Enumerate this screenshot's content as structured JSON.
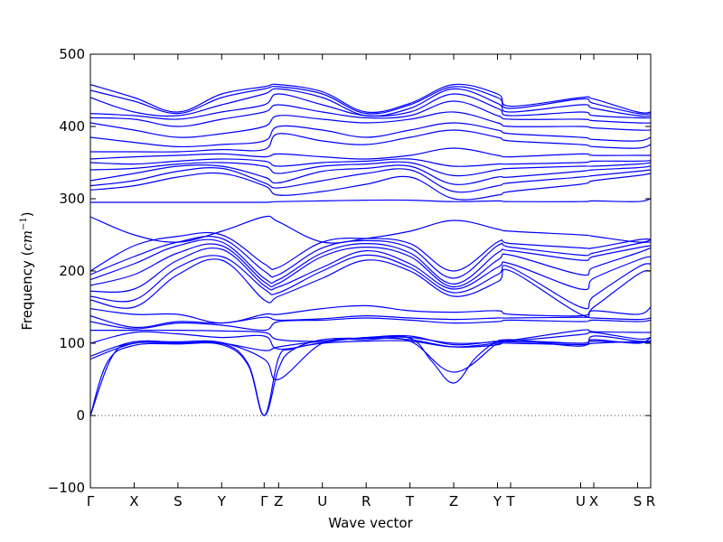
{
  "chart_data": {
    "type": "line",
    "title": "",
    "xlabel": "Wave vector",
    "ylabel_text": "Frequency (",
    "ylabel_unit": "cm",
    "ylabel_exponent": "−1",
    "ylabel_close": ")",
    "ylim": [
      -100,
      500
    ],
    "yticks": [
      -100,
      0,
      100,
      200,
      300,
      400,
      500
    ],
    "xlim": [
      0,
      12.8
    ],
    "xticks": [
      {
        "pos": 0.0,
        "label": "Γ"
      },
      {
        "pos": 1.0,
        "label": "X"
      },
      {
        "pos": 2.0,
        "label": "S"
      },
      {
        "pos": 3.0,
        "label": "Y"
      },
      {
        "pos": 3.97,
        "label": "Γ"
      },
      {
        "pos": 4.3,
        "label": "Z"
      },
      {
        "pos": 5.3,
        "label": "U"
      },
      {
        "pos": 6.3,
        "label": "R"
      },
      {
        "pos": 7.3,
        "label": "T"
      },
      {
        "pos": 8.3,
        "label": "Z"
      },
      {
        "pos": 9.3,
        "label": "Y"
      },
      {
        "pos": 9.6,
        "label": "T"
      },
      {
        "pos": 11.2,
        "label": "U"
      },
      {
        "pos": 11.5,
        "label": "X"
      },
      {
        "pos": 12.5,
        "label": "S"
      },
      {
        "pos": 12.8,
        "label": "R"
      }
    ],
    "zero_line": true,
    "grid": false,
    "line_color": "#0000ff",
    "series": [
      {
        "x": [
          0,
          0.4,
          1,
          2,
          3,
          3.6,
          3.97,
          4.3,
          4.6,
          5.3,
          6.3,
          7.3,
          8.3,
          9.3,
          9.6,
          11.2,
          11.5,
          12.5,
          12.8
        ],
        "y": [
          0,
          75,
          97,
          99,
          98,
          70,
          0,
          80,
          92,
          100,
          103,
          103,
          95,
          100,
          100,
          98,
          100,
          102,
          100
        ]
      },
      {
        "x": [
          0,
          0.5,
          1,
          2,
          3,
          3.6,
          3.97,
          4.3,
          4.6,
          5.3,
          6.3,
          7.3,
          7.8,
          8.3,
          8.8,
          9.3,
          9.6,
          11.2,
          11.5,
          12.5,
          12.8
        ],
        "y": [
          0,
          82,
          100,
          100,
          100,
          72,
          0,
          65,
          90,
          105,
          107,
          107,
          75,
          45,
          80,
          103,
          102,
          100,
          103,
          101,
          102
        ]
      },
      {
        "x": [
          0,
          1,
          2,
          3,
          3.97,
          4.3,
          5.3,
          6.3,
          7.3,
          8.3,
          9.3,
          9.6,
          11.2,
          11.5,
          12.5,
          12.8
        ],
        "y": [
          78,
          100,
          102,
          101,
          78,
          50,
          100,
          105,
          103,
          60,
          100,
          104,
          100,
          105,
          100,
          108
        ]
      },
      {
        "x": [
          0,
          1,
          2,
          3,
          3.97,
          4.3,
          5.3,
          6.3,
          7.3,
          8.3,
          9.3,
          9.6,
          11.2,
          11.5,
          12.5,
          12.8
        ],
        "y": [
          82,
          102,
          101,
          100,
          90,
          95,
          103,
          107,
          105,
          95,
          98,
          105,
          96,
          110,
          103,
          103
        ]
      },
      {
        "x": [
          0,
          1,
          2,
          3,
          3.97,
          4.3,
          5.3,
          6.3,
          7.3,
          8.3,
          9.3,
          9.6,
          11.2,
          11.5,
          12.5,
          12.8
        ],
        "y": [
          100,
          115,
          113,
          108,
          110,
          92,
          101,
          108,
          108,
          100,
          102,
          103,
          112,
          115,
          106,
          108
        ]
      },
      {
        "x": [
          0,
          1,
          2,
          3,
          3.97,
          4.3,
          5.3,
          6.3,
          7.3,
          8.3,
          9.3,
          9.6,
          11.2,
          11.5,
          12.5,
          12.8
        ],
        "y": [
          118,
          118,
          118,
          117,
          115,
          105,
          103,
          108,
          110,
          98,
          103,
          104,
          118,
          116,
          115,
          115
        ]
      },
      {
        "x": [
          0,
          1,
          2,
          3,
          3.97,
          4.3,
          5.3,
          6.3,
          7.3,
          8.3,
          9.3,
          9.6,
          11.2,
          11.5,
          12.5,
          12.8
        ],
        "y": [
          130,
          120,
          128,
          125,
          118,
          130,
          132,
          135,
          132,
          128,
          130,
          132,
          130,
          132,
          130,
          132
        ]
      },
      {
        "x": [
          0,
          1,
          2,
          3,
          3.97,
          4.3,
          5.3,
          6.3,
          7.3,
          8.3,
          9.3,
          9.6,
          11.2,
          11.5,
          12.5,
          12.8
        ],
        "y": [
          138,
          122,
          130,
          128,
          136,
          132,
          134,
          138,
          135,
          133,
          135,
          135,
          136,
          135,
          133,
          135
        ]
      },
      {
        "x": [
          0,
          1,
          2,
          3,
          3.97,
          4.3,
          5.3,
          6.3,
          7.3,
          8.3,
          9.3,
          9.6,
          11.2,
          11.5,
          12.5,
          12.8
        ],
        "y": [
          148,
          140,
          140,
          128,
          140,
          140,
          148,
          152,
          145,
          143,
          145,
          140,
          138,
          145,
          140,
          150
        ]
      },
      {
        "x": [
          0,
          1,
          2,
          3,
          3.97,
          4.3,
          5.3,
          6.3,
          7.3,
          8.3,
          9.3,
          9.6,
          11.2,
          11.5,
          12.5,
          12.8
        ],
        "y": [
          160,
          150,
          195,
          215,
          160,
          165,
          190,
          215,
          200,
          165,
          185,
          200,
          140,
          150,
          195,
          200
        ]
      },
      {
        "x": [
          0,
          1,
          2,
          3,
          3.97,
          4.3,
          5.3,
          6.3,
          7.3,
          8.3,
          9.3,
          9.6,
          11.2,
          11.5,
          12.5,
          12.8
        ],
        "y": [
          165,
          160,
          205,
          220,
          175,
          170,
          200,
          222,
          205,
          170,
          195,
          205,
          150,
          165,
          205,
          210
        ]
      },
      {
        "x": [
          0,
          1,
          2,
          3,
          3.97,
          4.3,
          5.3,
          6.3,
          7.3,
          8.3,
          9.3,
          9.6,
          11.2,
          11.5,
          12.5,
          12.8
        ],
        "y": [
          172,
          175,
          215,
          230,
          180,
          178,
          205,
          228,
          210,
          175,
          205,
          210,
          175,
          190,
          215,
          220
        ]
      },
      {
        "x": [
          0,
          1,
          2,
          3,
          3.97,
          4.3,
          5.3,
          6.3,
          7.3,
          8.3,
          9.3,
          9.6,
          11.2,
          11.5,
          12.5,
          12.8
        ],
        "y": [
          180,
          195,
          225,
          235,
          185,
          183,
          220,
          233,
          220,
          178,
          215,
          222,
          195,
          205,
          225,
          232
        ]
      },
      {
        "x": [
          0,
          1,
          2,
          3,
          3.97,
          4.3,
          5.3,
          6.3,
          7.3,
          8.3,
          9.3,
          9.6,
          11.2,
          11.5,
          12.5,
          12.8
        ],
        "y": [
          188,
          210,
          235,
          240,
          190,
          188,
          225,
          238,
          225,
          182,
          225,
          228,
          215,
          220,
          232,
          235
        ]
      },
      {
        "x": [
          0,
          1,
          2,
          3,
          3.97,
          4.3,
          5.3,
          6.3,
          7.3,
          8.3,
          9.3,
          9.6,
          11.2,
          11.5,
          12.5,
          12.8
        ],
        "y": [
          195,
          220,
          240,
          245,
          200,
          195,
          232,
          242,
          232,
          190,
          235,
          233,
          222,
          225,
          238,
          240
        ]
      },
      {
        "x": [
          0,
          1,
          2,
          3,
          3.97,
          4.3,
          5.3,
          6.3,
          7.3,
          8.3,
          9.3,
          9.6,
          11.2,
          11.5,
          12.5,
          12.8
        ],
        "y": [
          200,
          235,
          248,
          250,
          210,
          205,
          240,
          245,
          238,
          200,
          240,
          238,
          232,
          232,
          243,
          244
        ]
      },
      {
        "x": [
          0,
          1,
          2,
          3,
          3.97,
          4.3,
          5.3,
          6.3,
          7.3,
          8.3,
          9.3,
          9.6,
          11.2,
          11.5,
          12.5,
          12.8
        ],
        "y": [
          275,
          250,
          240,
          255,
          275,
          268,
          240,
          245,
          255,
          270,
          258,
          255,
          250,
          248,
          240,
          243
        ]
      },
      {
        "x": [
          0,
          1,
          2,
          3,
          3.97,
          4.3,
          5.3,
          6.3,
          7.3,
          8.3,
          9.3,
          9.6,
          11.2,
          11.5,
          12.5,
          12.8
        ],
        "y": [
          295,
          295,
          295,
          295,
          295,
          296,
          297,
          298,
          298,
          296,
          297,
          296,
          296,
          297,
          296,
          300
        ]
      },
      {
        "x": [
          0,
          1,
          2,
          3,
          3.97,
          4.3,
          5.3,
          6.3,
          7.3,
          8.3,
          9.3,
          9.6,
          11.2,
          11.5,
          12.5,
          12.8
        ],
        "y": [
          312,
          318,
          330,
          335,
          318,
          305,
          310,
          320,
          330,
          300,
          305,
          310,
          320,
          325,
          332,
          335
        ]
      },
      {
        "x": [
          0,
          1,
          2,
          3,
          3.97,
          4.3,
          5.3,
          6.3,
          7.3,
          8.3,
          9.3,
          9.6,
          11.2,
          11.5,
          12.5,
          12.8
        ],
        "y": [
          318,
          325,
          338,
          342,
          322,
          315,
          325,
          335,
          340,
          310,
          318,
          322,
          330,
          332,
          338,
          340
        ]
      },
      {
        "x": [
          0,
          1,
          2,
          3,
          3.97,
          4.3,
          5.3,
          6.3,
          7.3,
          8.3,
          9.3,
          9.6,
          11.2,
          11.5,
          12.5,
          12.8
        ],
        "y": [
          325,
          335,
          345,
          345,
          330,
          322,
          338,
          342,
          345,
          320,
          330,
          330,
          338,
          340,
          343,
          345
        ]
      },
      {
        "x": [
          0,
          1,
          2,
          3,
          3.97,
          4.3,
          5.3,
          6.3,
          7.3,
          8.3,
          9.3,
          9.6,
          11.2,
          11.5,
          12.5,
          12.8
        ],
        "y": [
          340,
          342,
          348,
          350,
          345,
          335,
          345,
          348,
          350,
          332,
          340,
          342,
          345,
          345,
          348,
          350
        ]
      },
      {
        "x": [
          0,
          1,
          2,
          3,
          3.97,
          4.3,
          5.3,
          6.3,
          7.3,
          8.3,
          9.3,
          9.6,
          11.2,
          11.5,
          12.5,
          12.8
        ],
        "y": [
          350,
          348,
          352,
          355,
          352,
          345,
          350,
          352,
          355,
          345,
          348,
          348,
          350,
          352,
          352,
          353
        ]
      },
      {
        "x": [
          0,
          1,
          2,
          3,
          3.97,
          4.3,
          5.3,
          6.3,
          7.3,
          8.3,
          9.3,
          9.6,
          11.2,
          11.5,
          12.5,
          12.8
        ],
        "y": [
          355,
          358,
          360,
          362,
          358,
          362,
          358,
          355,
          360,
          370,
          360,
          358,
          362,
          360,
          360,
          360
        ]
      },
      {
        "x": [
          0,
          1,
          2,
          3,
          3.97,
          4.3,
          5.3,
          6.3,
          7.3,
          8.3,
          9.3,
          9.6,
          11.2,
          11.5,
          12.5,
          12.8
        ],
        "y": [
          365,
          365,
          365,
          368,
          368,
          390,
          380,
          375,
          385,
          395,
          385,
          380,
          375,
          372,
          370,
          375
        ]
      },
      {
        "x": [
          0,
          1,
          2,
          3,
          3.97,
          4.3,
          5.3,
          6.3,
          7.3,
          8.3,
          9.3,
          9.6,
          11.2,
          11.5,
          12.5,
          12.8
        ],
        "y": [
          385,
          378,
          372,
          375,
          380,
          400,
          395,
          385,
          395,
          405,
          395,
          390,
          385,
          382,
          380,
          385
        ]
      },
      {
        "x": [
          0,
          1,
          2,
          3,
          3.97,
          4.3,
          5.3,
          6.3,
          7.3,
          8.3,
          9.3,
          9.6,
          11.2,
          11.5,
          12.5,
          12.8
        ],
        "y": [
          405,
          395,
          385,
          390,
          400,
          415,
          410,
          405,
          410,
          420,
          405,
          400,
          400,
          398,
          395,
          395
        ]
      },
      {
        "x": [
          0,
          1,
          2,
          3,
          3.97,
          4.3,
          5.3,
          6.3,
          7.3,
          8.3,
          9.3,
          9.6,
          11.2,
          11.5,
          12.5,
          12.8
        ],
        "y": [
          412,
          410,
          400,
          410,
          420,
          430,
          420,
          412,
          415,
          435,
          415,
          410,
          410,
          408,
          405,
          405
        ]
      },
      {
        "x": [
          0,
          1,
          2,
          3,
          3.97,
          4.3,
          5.3,
          6.3,
          7.3,
          8.3,
          9.3,
          9.6,
          11.2,
          11.5,
          12.5,
          12.8
        ],
        "y": [
          418,
          415,
          410,
          420,
          430,
          445,
          430,
          415,
          420,
          445,
          425,
          415,
          420,
          415,
          412,
          412
        ]
      },
      {
        "x": [
          0,
          1,
          2,
          3,
          3.97,
          4.3,
          5.3,
          6.3,
          7.3,
          8.3,
          9.3,
          9.6,
          11.2,
          11.5,
          12.5,
          12.8
        ],
        "y": [
          440,
          420,
          415,
          430,
          445,
          452,
          440,
          415,
          425,
          452,
          432,
          420,
          430,
          425,
          415,
          415
        ]
      },
      {
        "x": [
          0,
          1,
          2,
          3,
          3.97,
          4.3,
          5.3,
          6.3,
          7.3,
          8.3,
          9.3,
          9.6,
          11.2,
          11.5,
          12.5,
          12.8
        ],
        "y": [
          450,
          435,
          418,
          440,
          452,
          455,
          445,
          418,
          430,
          455,
          440,
          425,
          438,
          432,
          418,
          418
        ]
      },
      {
        "x": [
          0,
          1,
          2,
          3,
          3.97,
          4.3,
          5.3,
          6.3,
          7.3,
          8.3,
          9.3,
          9.6,
          11.2,
          11.5,
          12.5,
          12.8
        ],
        "y": [
          458,
          440,
          420,
          445,
          455,
          458,
          448,
          420,
          432,
          458,
          445,
          428,
          440,
          438,
          420,
          420
        ]
      }
    ]
  }
}
